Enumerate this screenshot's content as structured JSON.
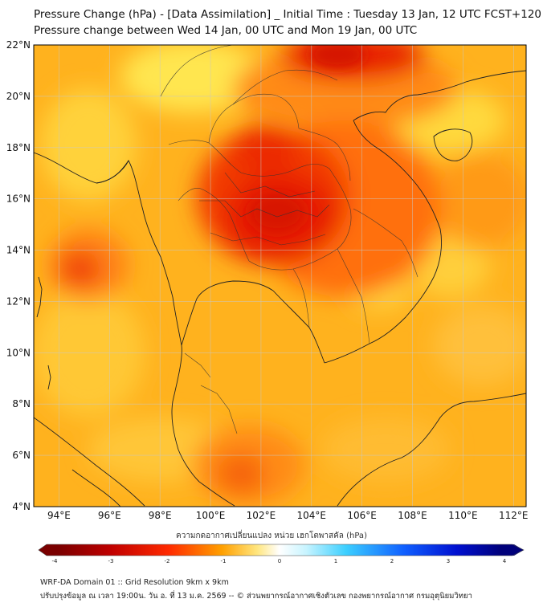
{
  "title_line1": "Pressure Change (hPa) - [Data Assimilation] _ Initial Time : Tuesday 13 Jan, 12 UTC FCST+120",
  "title_line2": "Pressure change between Wed 14 Jan, 00 UTC and Mon 19 Jan, 00 UTC",
  "lat_labels": [
    "22°N",
    "20°N",
    "18°N",
    "16°N",
    "14°N",
    "12°N",
    "10°N",
    "8°N",
    "6°N",
    "4°N"
  ],
  "lon_labels": [
    "94°E",
    "96°E",
    "98°E",
    "100°E",
    "102°E",
    "104°E",
    "106°E",
    "108°E",
    "110°E",
    "112°E"
  ],
  "colorbar_label": "ความกดอากาศเปลี่ยนแปลง หน่วย เฮกโตพาสคัล (hPa)",
  "colorbar_ticks": [
    "-4",
    "-3",
    "-2",
    "-1",
    "0",
    "1",
    "2",
    "3",
    "4"
  ],
  "colorbar_colors": {
    "neg_dark": "#7a0000",
    "neg_mid": "#e60000",
    "neg_light": "#ffd23c",
    "zero": "#ffffff",
    "pos_light": "#5ad8ff",
    "pos_dark": "#00007a"
  },
  "footer_line1": "WRF-DA Domain 01 :: Grid Resolution 9km x 9km",
  "footer_line2": "ปรับปรุงข้อมูล ณ เวลา 19:00น. วัน อ. ที่ 13 ม.ค. 2569 -- © ส่วนพยากรณ์อากาศเชิงตัวเลข กองพยากรณ์อากาศ กรมอุตุนิยมวิทยา"
}
